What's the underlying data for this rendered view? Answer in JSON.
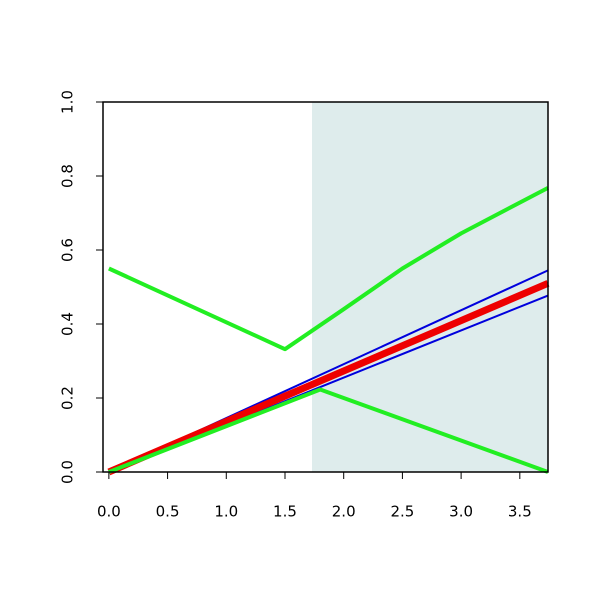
{
  "chart_data": {
    "type": "line",
    "xlim": [
      -0.05,
      3.74
    ],
    "ylim": [
      0,
      1
    ],
    "xticks": [
      {
        "value": 0,
        "label": "0.0"
      },
      0.5,
      {
        "value": 1,
        "label": "1.0"
      },
      1.5,
      {
        "value": 2,
        "label": "2.0"
      },
      2.5,
      {
        "value": 3,
        "label": "3.0"
      },
      3.5
    ],
    "yticks": [
      {
        "value": 0,
        "label": "0.0"
      },
      0.2,
      0.4,
      0.6,
      0.8,
      {
        "value": 1,
        "label": "1.0"
      }
    ],
    "shade_from": 1.73,
    "shade_color": "#deecec",
    "series": [
      {
        "color": "#0000dd",
        "width": 2,
        "x": [
          0,
          3.74
        ],
        "values": [
          0,
          0.545
        ]
      },
      {
        "color": "#0000dd",
        "width": 2,
        "x": [
          0,
          3.74
        ],
        "values": [
          0,
          0.477
        ]
      },
      {
        "color": "#ee0000",
        "width": 7,
        "x": [
          0,
          1.5,
          3.74
        ],
        "values": [
          0,
          0.205,
          0.51
        ]
      },
      {
        "color": "#22ee22",
        "width": 4,
        "x": [
          0,
          1.5,
          2.0,
          2.5,
          3.0,
          3.74
        ],
        "values": [
          0.55,
          0.332,
          0.44,
          0.55,
          0.645,
          0.768
        ]
      },
      {
        "color": "#22ee22",
        "width": 4,
        "x": [
          0,
          1.8,
          3.74
        ],
        "values": [
          0,
          0.223,
          0
        ]
      }
    ]
  }
}
